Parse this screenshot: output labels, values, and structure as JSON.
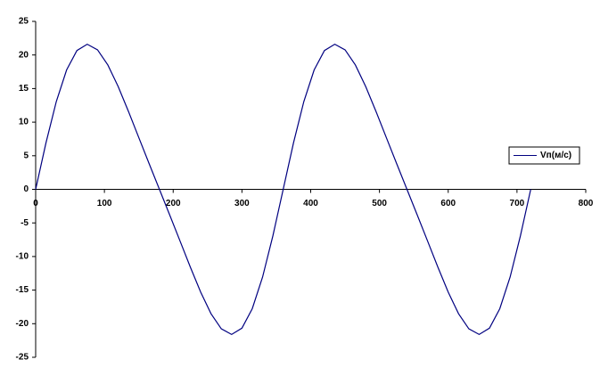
{
  "chart_data": {
    "type": "line",
    "x": [
      0,
      15,
      30,
      45,
      60,
      75,
      90,
      105,
      120,
      135,
      150,
      165,
      180,
      195,
      210,
      225,
      240,
      255,
      270,
      285,
      300,
      315,
      330,
      345,
      360,
      375,
      390,
      405,
      420,
      435,
      450,
      465,
      480,
      495,
      510,
      525,
      540,
      555,
      570,
      585,
      600,
      615,
      630,
      645,
      660,
      675,
      690,
      705,
      720
    ],
    "series": [
      {
        "name": "Vп(м/с)",
        "color": "#000080",
        "values": [
          0,
          6.92,
          13.06,
          17.77,
          20.66,
          21.6,
          20.76,
          18.51,
          15.3,
          11.59,
          7.7,
          3.83,
          0,
          -3.83,
          -7.7,
          -11.59,
          -15.3,
          -18.51,
          -20.76,
          -21.6,
          -20.66,
          -17.77,
          -13.06,
          -6.92,
          0,
          6.92,
          13.06,
          17.77,
          20.66,
          21.6,
          20.76,
          18.51,
          15.3,
          11.59,
          7.7,
          3.83,
          0,
          -3.83,
          -7.7,
          -11.59,
          -15.3,
          -18.51,
          -20.76,
          -21.6,
          -20.66,
          -17.77,
          -13.06,
          -6.92,
          0
        ]
      }
    ],
    "xlim": [
      0,
      800
    ],
    "xticks": [
      0,
      100,
      200,
      300,
      400,
      500,
      600,
      700,
      800
    ],
    "ylim": [
      -25,
      25
    ],
    "yticks": [
      -25,
      -20,
      -15,
      -10,
      -5,
      0,
      5,
      10,
      15,
      20,
      25
    ],
    "grid": false,
    "legend": "right"
  }
}
